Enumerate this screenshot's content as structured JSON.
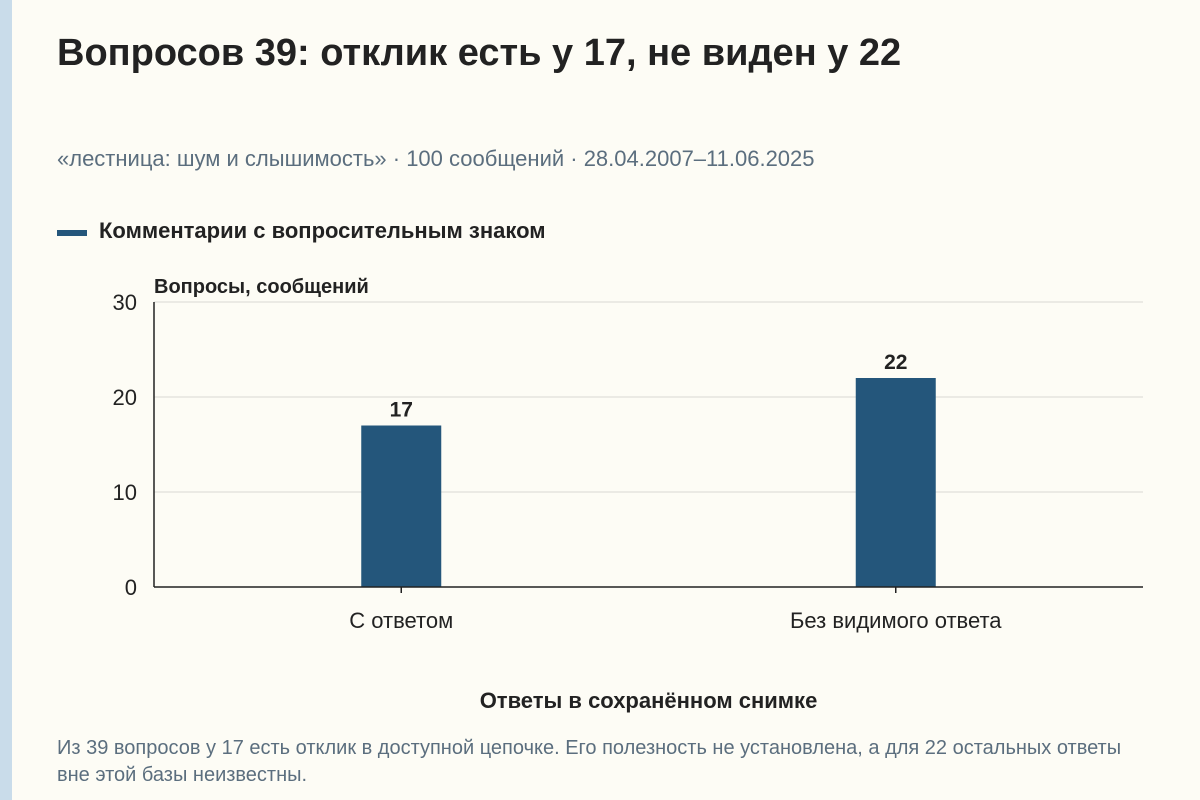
{
  "title": "Вопросов 39: отклик есть у 17, не виден у 22",
  "subtitle": "«лестница: шум и слышимость» · 100 сообщений · 28.04.2007–11.06.2025",
  "note": "Из 39 вопросов у 17 есть отклик в доступной цепочке. Его полезность не установлена, а для 22 остальных ответы вне этой базы неизвестны.",
  "colors": {
    "bar": "#24567b",
    "grid": "#d9d9d4",
    "axis": "#222222",
    "text": "#222222",
    "muted": "#5b6e7e",
    "background": "#fdfcf5"
  },
  "chart_data": {
    "type": "bar",
    "categories": [
      "С ответом",
      "Без видимого ответа"
    ],
    "series": [
      {
        "name": "Комментарии с вопросительным знаком",
        "values": [
          17,
          22
        ]
      }
    ],
    "data_labels": [
      "17",
      "22"
    ],
    "xlabel": "Ответы в сохранённом снимке",
    "ylabel": "Вопросы, сообщений",
    "ylim": [
      0,
      30
    ],
    "yticks": [
      0,
      10,
      20,
      30
    ],
    "grid": true,
    "legend_position": "top-left"
  }
}
